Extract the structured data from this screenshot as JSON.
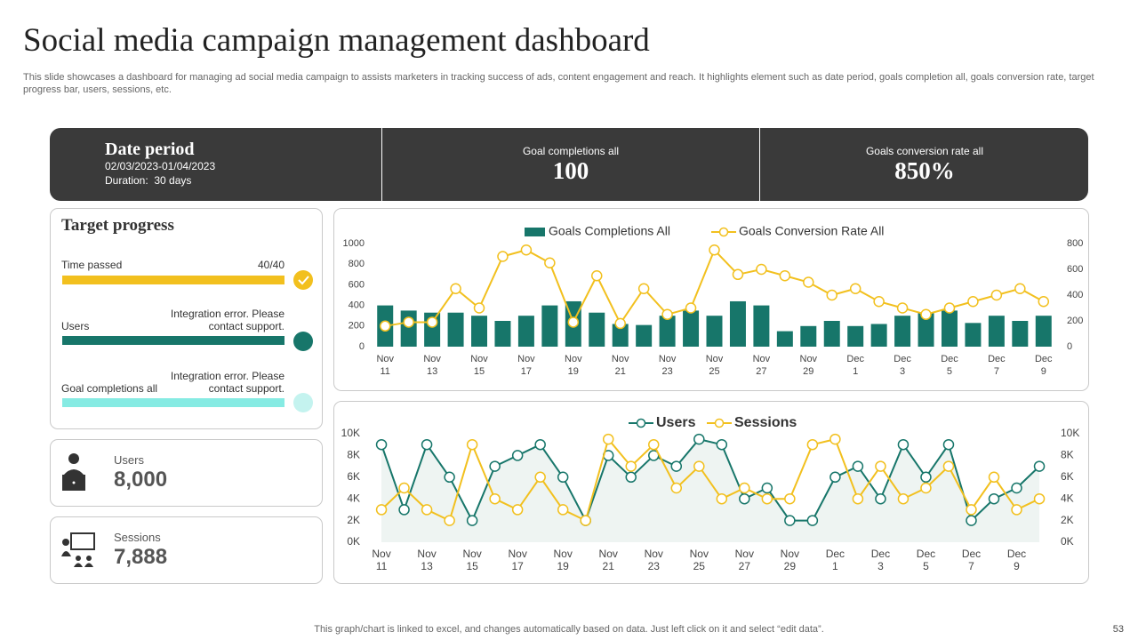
{
  "header": {
    "title": "Social media campaign management dashboard",
    "subtitle": "This slide showcases a dashboard for managing ad social media campaign to assists marketers in tracking success of ads, content engagement and reach. It highlights element such as date period, goals completion all, goals conversion rate, target progress bar, users, sessions, etc."
  },
  "summary": {
    "date_period": {
      "label": "Date period",
      "range": "02/03/2023-01/04/2023",
      "duration": "Duration:  30 days"
    },
    "goal_completions": {
      "label": "Goal completions all",
      "value": "100"
    },
    "conversion_rate": {
      "label": "Goals conversion rate all",
      "value": "850%"
    }
  },
  "target_progress": {
    "title": "Target progress",
    "items": [
      {
        "label": "Time passed",
        "status": "40/40"
      },
      {
        "label": "Users",
        "status": "Integration error. Please contact support."
      },
      {
        "label": "Goal completions all",
        "status": "Integration error. Please contact support."
      }
    ]
  },
  "stats": [
    {
      "label": "Users",
      "value": "8,000"
    },
    {
      "label": "Sessions",
      "value": "7,888"
    }
  ],
  "chart_data": [
    {
      "type": "combo",
      "categories": [
        "Nov 11",
        null,
        "Nov 13",
        null,
        "Nov 15",
        null,
        "Nov 17",
        null,
        "Nov 19",
        null,
        "Nov 21",
        null,
        "Nov 23",
        null,
        "Nov 25",
        null,
        "Nov 27",
        null,
        "Nov 29",
        null,
        "Dec 1",
        null,
        "Dec 3",
        null,
        "Dec 5",
        null,
        "Dec 7",
        null,
        "Dec 9"
      ],
      "series": [
        {
          "name": "Goals Completions All",
          "color": "#17766a",
          "type": "bar",
          "values": [
            400,
            350,
            330,
            330,
            300,
            250,
            300,
            400,
            440,
            330,
            220,
            210,
            300,
            350,
            300,
            440,
            400,
            150,
            200,
            250,
            200,
            220,
            300,
            330,
            350,
            230,
            300,
            250,
            300
          ]
        },
        {
          "name": "Goals Conversion Rate All",
          "color": "#f2c01e",
          "type": "line",
          "axis": "y2",
          "values": [
            160,
            190,
            190,
            450,
            300,
            700,
            750,
            650,
            190,
            550,
            180,
            450,
            250,
            300,
            750,
            560,
            600,
            550,
            500,
            400,
            450,
            350,
            300,
            250,
            300,
            350,
            400,
            450,
            350
          ]
        }
      ],
      "ylim": [
        0,
        1000
      ],
      "yticks": [
        0,
        200,
        400,
        600,
        800,
        1000
      ],
      "y2lim": [
        0,
        800
      ],
      "y2ticks": [
        0,
        200,
        400,
        600,
        800
      ],
      "grid": false
    },
    {
      "type": "line",
      "categories": [
        "Nov 11",
        null,
        "Nov 13",
        null,
        "Nov 15",
        null,
        "Nov 17",
        null,
        "Nov 19",
        null,
        "Nov 21",
        null,
        "Nov 23",
        null,
        "Nov 25",
        null,
        "Nov 27",
        null,
        "Nov 29",
        null,
        "Dec 1",
        null,
        "Dec 3",
        null,
        "Dec 5",
        null,
        "Dec 7",
        null,
        "Dec 9",
        null
      ],
      "series": [
        {
          "name": "Users",
          "color": "#17766a",
          "area": true,
          "values": [
            9000,
            3000,
            9000,
            6000,
            2000,
            7000,
            8000,
            9000,
            6000,
            2000,
            8000,
            6000,
            8000,
            7000,
            9500,
            9000,
            4000,
            5000,
            2000,
            2000,
            6000,
            7000,
            4000,
            9000,
            6000,
            9000,
            2000,
            4000,
            5000,
            7000
          ]
        },
        {
          "name": "Sessions",
          "color": "#f2c01e",
          "axis": "y2",
          "values": [
            3000,
            5000,
            3000,
            2000,
            9000,
            4000,
            3000,
            6000,
            3000,
            2000,
            9500,
            7000,
            9000,
            5000,
            7000,
            4000,
            5000,
            4000,
            4000,
            9000,
            9500,
            4000,
            7000,
            4000,
            5000,
            7000,
            3000,
            6000,
            3000,
            4000
          ]
        }
      ],
      "ylim": [
        0,
        10000
      ],
      "yticks": [
        {
          "value": 0,
          "label": "0K"
        },
        {
          "value": 2000,
          "label": "2K"
        },
        {
          "value": 4000,
          "label": "4K"
        },
        {
          "value": 6000,
          "label": "6K"
        },
        {
          "value": 8000,
          "label": "8K"
        },
        {
          "value": 10000,
          "label": "10K"
        }
      ],
      "y2lim": [
        0,
        10000
      ],
      "y2ticks": [
        {
          "value": 0,
          "label": "0K"
        },
        {
          "value": 2000,
          "label": "2K"
        },
        {
          "value": 4000,
          "label": "4K"
        },
        {
          "value": 6000,
          "label": "6K"
        },
        {
          "value": 8000,
          "label": "8K"
        },
        {
          "value": 10000,
          "label": "10K"
        }
      ],
      "grid": false
    }
  ],
  "footer": {
    "note": "This graph/chart is linked to excel,  and changes automatically based on data. Just left click on it and select “edit data”.",
    "page": "53"
  }
}
